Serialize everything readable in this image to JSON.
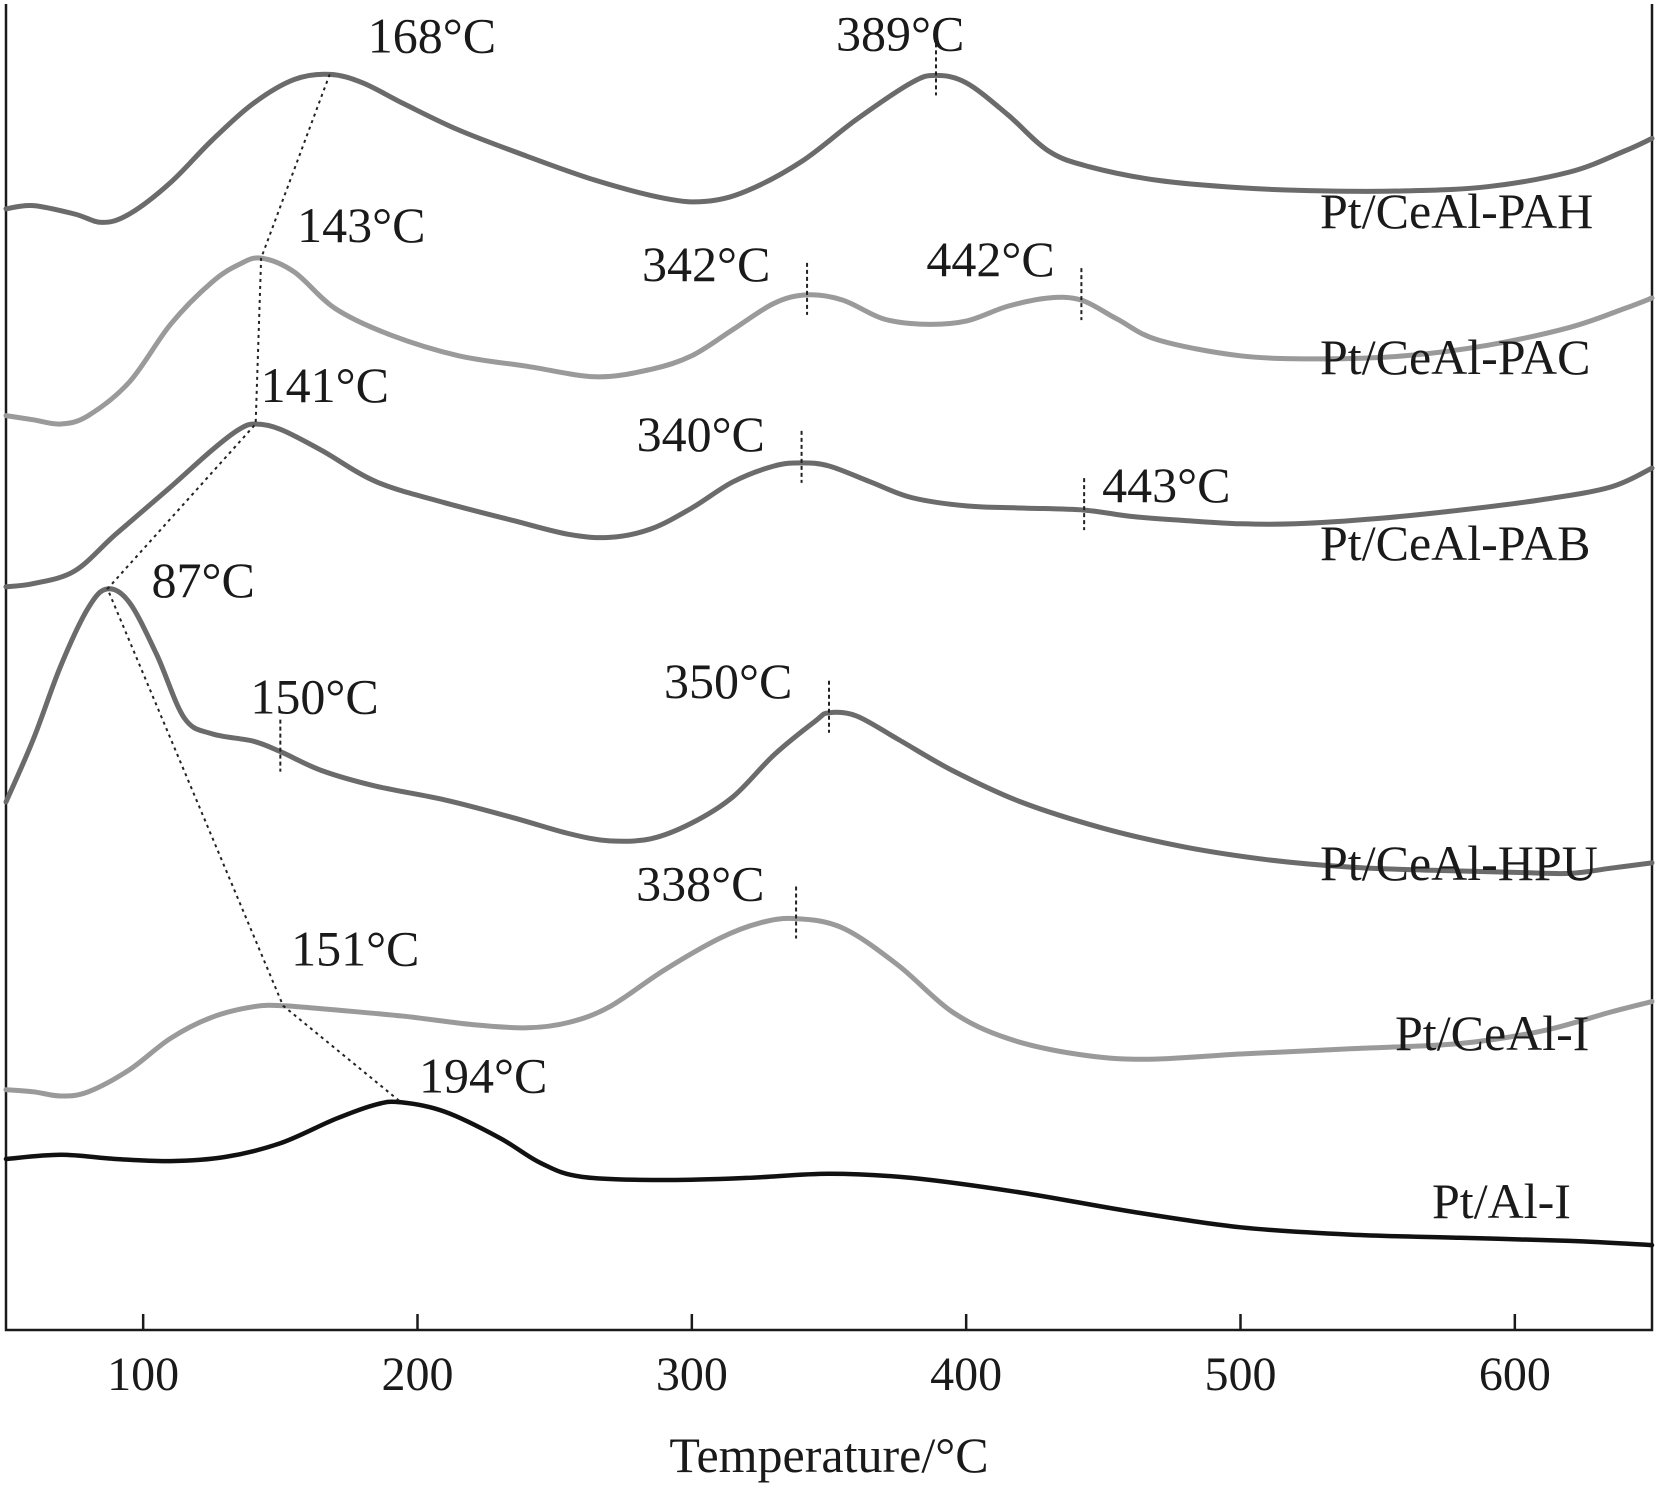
{
  "chart_data": {
    "type": "line",
    "title": "",
    "xlabel": "Temperature/°C",
    "ylabel": "",
    "xlim": [
      50,
      650
    ],
    "xticks": [
      100,
      200,
      300,
      400,
      500,
      600
    ],
    "grid": false,
    "legend": "none",
    "colors": {
      "dark": "#6b6b6b",
      "light": "#9a9a9a",
      "black": "#111111",
      "axis": "#1a1a1a"
    },
    "series": [
      {
        "name": "Pt/CeAl-PAH",
        "color": "dark",
        "points": [
          [
            50,
            195
          ],
          [
            60,
            192
          ],
          [
            75,
            200
          ],
          [
            85,
            208
          ],
          [
            95,
            200
          ],
          [
            110,
            170
          ],
          [
            125,
            130
          ],
          [
            140,
            95
          ],
          [
            155,
            72
          ],
          [
            168,
            67
          ],
          [
            180,
            75
          ],
          [
            195,
            95
          ],
          [
            215,
            120
          ],
          [
            240,
            145
          ],
          [
            265,
            168
          ],
          [
            290,
            185
          ],
          [
            305,
            188
          ],
          [
            320,
            178
          ],
          [
            340,
            150
          ],
          [
            360,
            110
          ],
          [
            380,
            75
          ],
          [
            389,
            68
          ],
          [
            400,
            75
          ],
          [
            415,
            105
          ],
          [
            430,
            140
          ],
          [
            445,
            155
          ],
          [
            470,
            168
          ],
          [
            500,
            175
          ],
          [
            530,
            178
          ],
          [
            560,
            178
          ],
          [
            590,
            174
          ],
          [
            620,
            160
          ],
          [
            640,
            140
          ],
          [
            650,
            128
          ]
        ],
        "peaks": [
          {
            "x": 168,
            "label": "168°C",
            "marker": "dotted-trend"
          },
          {
            "x": 389,
            "label": "389°C",
            "marker": "tick"
          }
        ]
      },
      {
        "name": "Pt/CeAl-PAC",
        "color": "light",
        "points": [
          [
            50,
            392
          ],
          [
            60,
            396
          ],
          [
            70,
            400
          ],
          [
            80,
            392
          ],
          [
            95,
            360
          ],
          [
            110,
            305
          ],
          [
            125,
            265
          ],
          [
            135,
            248
          ],
          [
            143,
            242
          ],
          [
            155,
            255
          ],
          [
            170,
            290
          ],
          [
            190,
            315
          ],
          [
            215,
            335
          ],
          [
            240,
            345
          ],
          [
            265,
            355
          ],
          [
            285,
            348
          ],
          [
            300,
            335
          ],
          [
            315,
            310
          ],
          [
            330,
            285
          ],
          [
            342,
            277
          ],
          [
            355,
            282
          ],
          [
            370,
            300
          ],
          [
            385,
            305
          ],
          [
            400,
            302
          ],
          [
            415,
            288
          ],
          [
            430,
            280
          ],
          [
            442,
            282
          ],
          [
            455,
            300
          ],
          [
            470,
            320
          ],
          [
            500,
            335
          ],
          [
            530,
            338
          ],
          [
            560,
            335
          ],
          [
            590,
            325
          ],
          [
            620,
            308
          ],
          [
            640,
            290
          ],
          [
            650,
            280
          ]
        ],
        "peaks": [
          {
            "x": 143,
            "label": "143°C",
            "marker": "dotted-trend"
          },
          {
            "x": 342,
            "label": "342°C",
            "marker": "tick"
          },
          {
            "x": 442,
            "label": "442°C",
            "marker": "tick"
          }
        ]
      },
      {
        "name": "Pt/CeAl-PAB",
        "color": "dark",
        "points": [
          [
            50,
            555
          ],
          [
            60,
            552
          ],
          [
            75,
            540
          ],
          [
            90,
            505
          ],
          [
            110,
            460
          ],
          [
            125,
            425
          ],
          [
            135,
            405
          ],
          [
            141,
            400
          ],
          [
            150,
            405
          ],
          [
            165,
            425
          ],
          [
            185,
            455
          ],
          [
            210,
            475
          ],
          [
            235,
            492
          ],
          [
            255,
            505
          ],
          [
            270,
            508
          ],
          [
            285,
            500
          ],
          [
            300,
            480
          ],
          [
            315,
            455
          ],
          [
            330,
            440
          ],
          [
            340,
            437
          ],
          [
            350,
            440
          ],
          [
            365,
            455
          ],
          [
            380,
            470
          ],
          [
            400,
            478
          ],
          [
            420,
            480
          ],
          [
            443,
            482
          ],
          [
            460,
            488
          ],
          [
            480,
            492
          ],
          [
            500,
            495
          ],
          [
            520,
            495
          ],
          [
            550,
            490
          ],
          [
            580,
            482
          ],
          [
            610,
            472
          ],
          [
            635,
            460
          ],
          [
            650,
            442
          ]
        ],
        "peaks": [
          {
            "x": 141,
            "label": "141°C",
            "marker": "dotted-trend"
          },
          {
            "x": 340,
            "label": "340°C",
            "marker": "tick"
          },
          {
            "x": 443,
            "label": "443°C",
            "marker": "tick"
          }
        ]
      },
      {
        "name": "Pt/CeAl-HPU",
        "color": "dark",
        "points": [
          [
            50,
            760
          ],
          [
            60,
            700
          ],
          [
            70,
            630
          ],
          [
            80,
            575
          ],
          [
            87,
            557
          ],
          [
            95,
            570
          ],
          [
            105,
            620
          ],
          [
            115,
            680
          ],
          [
            125,
            695
          ],
          [
            140,
            702
          ],
          [
            150,
            712
          ],
          [
            165,
            730
          ],
          [
            185,
            745
          ],
          [
            210,
            758
          ],
          [
            235,
            775
          ],
          [
            255,
            790
          ],
          [
            270,
            797
          ],
          [
            285,
            795
          ],
          [
            300,
            780
          ],
          [
            315,
            755
          ],
          [
            330,
            715
          ],
          [
            345,
            683
          ],
          [
            350,
            675
          ],
          [
            360,
            678
          ],
          [
            375,
            700
          ],
          [
            395,
            730
          ],
          [
            420,
            760
          ],
          [
            450,
            785
          ],
          [
            480,
            803
          ],
          [
            510,
            815
          ],
          [
            540,
            822
          ],
          [
            570,
            825
          ],
          [
            600,
            827
          ],
          [
            620,
            828
          ],
          [
            635,
            823
          ],
          [
            650,
            818
          ]
        ],
        "peaks": [
          {
            "x": 87,
            "label": "87°C",
            "marker": "dotted-trend"
          },
          {
            "x": 150,
            "label": "150°C",
            "marker": "tick"
          },
          {
            "x": 350,
            "label": "350°C",
            "marker": "tick"
          }
        ]
      },
      {
        "name": "Pt/CeAl-I",
        "color": "light",
        "points": [
          [
            50,
            1034
          ],
          [
            60,
            1036
          ],
          [
            70,
            1040
          ],
          [
            80,
            1036
          ],
          [
            95,
            1015
          ],
          [
            110,
            985
          ],
          [
            125,
            965
          ],
          [
            140,
            955
          ],
          [
            151,
            954
          ],
          [
            170,
            958
          ],
          [
            195,
            964
          ],
          [
            220,
            972
          ],
          [
            240,
            975
          ],
          [
            255,
            970
          ],
          [
            270,
            955
          ],
          [
            290,
            920
          ],
          [
            310,
            890
          ],
          [
            325,
            875
          ],
          [
            338,
            871
          ],
          [
            355,
            880
          ],
          [
            375,
            915
          ],
          [
            395,
            960
          ],
          [
            415,
            985
          ],
          [
            440,
            1000
          ],
          [
            465,
            1005
          ],
          [
            500,
            1000
          ],
          [
            540,
            995
          ],
          [
            580,
            990
          ],
          [
            610,
            978
          ],
          [
            635,
            960
          ],
          [
            650,
            950
          ]
        ],
        "peaks": [
          {
            "x": 151,
            "label": "151°C",
            "marker": "dotted-trend"
          },
          {
            "x": 338,
            "label": "338°C",
            "marker": "tick"
          }
        ]
      },
      {
        "name": "Pt/Al-I",
        "color": "black",
        "points": [
          [
            50,
            1100
          ],
          [
            70,
            1096
          ],
          [
            90,
            1100
          ],
          [
            110,
            1102
          ],
          [
            130,
            1098
          ],
          [
            150,
            1085
          ],
          [
            170,
            1062
          ],
          [
            185,
            1048
          ],
          [
            194,
            1046
          ],
          [
            210,
            1055
          ],
          [
            230,
            1080
          ],
          [
            245,
            1104
          ],
          [
            260,
            1117
          ],
          [
            290,
            1120
          ],
          [
            320,
            1118
          ],
          [
            350,
            1114
          ],
          [
            380,
            1118
          ],
          [
            420,
            1132
          ],
          [
            460,
            1150
          ],
          [
            500,
            1165
          ],
          [
            540,
            1172
          ],
          [
            580,
            1175
          ],
          [
            620,
            1178
          ],
          [
            650,
            1182
          ]
        ],
        "peaks": [
          {
            "x": 194,
            "label": "194°C",
            "marker": "dotted-trend"
          }
        ]
      }
    ]
  }
}
